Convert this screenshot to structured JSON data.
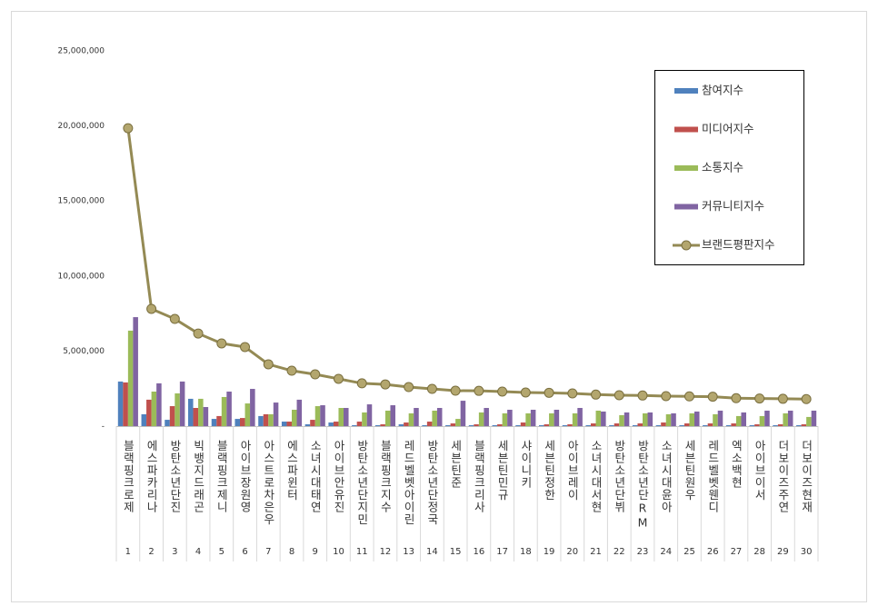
{
  "chart_data": {
    "type": "combo",
    "categories": [
      "블랙핑크로제",
      "에스파카리나",
      "방탄소년단진",
      "빅뱅지드래곤",
      "블랙핑크제니",
      "아이브장원영",
      "아스트로차은우",
      "에스파윈터",
      "소녀시대태연",
      "아이브안유진",
      "방탄소년단지민",
      "블랙핑크지수",
      "레드벨벳아이린",
      "방탄소년단정국",
      "세븐틴준",
      "블랙핑크리사",
      "세븐틴민규",
      "샤이니키",
      "세븐틴정한",
      "아이브레이",
      "소녀시대서현",
      "방탄소년단뷔",
      "방탄소년단RM",
      "소녀시대윤아",
      "세븐틴원우",
      "레드벨벳웬디",
      "엑소백현",
      "아이브이서",
      "더보이즈주연",
      "더보이즈현재"
    ],
    "ranks": [
      1,
      2,
      3,
      4,
      5,
      6,
      7,
      8,
      9,
      10,
      11,
      12,
      13,
      14,
      15,
      16,
      17,
      18,
      19,
      20,
      21,
      22,
      23,
      24,
      25,
      26,
      27,
      28,
      29,
      30
    ],
    "series": [
      {
        "name": "참여지수",
        "type": "bar",
        "color": "#4f81bd",
        "values": [
          2970000,
          790000,
          420000,
          1820000,
          480000,
          480000,
          670000,
          300000,
          120000,
          240000,
          60000,
          60000,
          120000,
          60000,
          60000,
          60000,
          60000,
          60000,
          60000,
          60000,
          60000,
          60000,
          60000,
          60000,
          60000,
          60000,
          60000,
          60000,
          60000,
          60000
        ]
      },
      {
        "name": "미디어지수",
        "type": "bar",
        "color": "#c0504d",
        "values": [
          2910000,
          1760000,
          1330000,
          1210000,
          670000,
          540000,
          790000,
          300000,
          420000,
          300000,
          300000,
          120000,
          240000,
          300000,
          180000,
          120000,
          120000,
          240000,
          120000,
          120000,
          180000,
          180000,
          180000,
          240000,
          180000,
          180000,
          180000,
          120000,
          120000,
          120000
        ]
      },
      {
        "name": "소통지수",
        "type": "bar",
        "color": "#9bbb59",
        "values": [
          6360000,
          2300000,
          2180000,
          1820000,
          1940000,
          1510000,
          790000,
          1090000,
          1330000,
          1210000,
          910000,
          1030000,
          850000,
          1030000,
          480000,
          910000,
          850000,
          850000,
          850000,
          850000,
          1030000,
          730000,
          850000,
          790000,
          850000,
          790000,
          670000,
          670000,
          850000,
          610000
        ]
      },
      {
        "name": "커뮤니티지수",
        "type": "bar",
        "color": "#8064a2",
        "values": [
          7260000,
          2850000,
          2970000,
          1270000,
          2300000,
          2480000,
          1570000,
          1760000,
          1390000,
          1210000,
          1450000,
          1390000,
          1210000,
          1210000,
          1690000,
          1210000,
          1090000,
          1090000,
          1090000,
          1210000,
          970000,
          910000,
          910000,
          850000,
          970000,
          1030000,
          910000,
          1030000,
          1030000,
          1030000
        ]
      },
      {
        "name": "브랜드평판지수",
        "type": "line",
        "color": "#948a54",
        "values": [
          19850000,
          7810000,
          7140000,
          6170000,
          5510000,
          5270000,
          4120000,
          3690000,
          3450000,
          3150000,
          2850000,
          2780000,
          2600000,
          2480000,
          2360000,
          2350000,
          2300000,
          2240000,
          2220000,
          2180000,
          2100000,
          2060000,
          2040000,
          2000000,
          1980000,
          1960000,
          1860000,
          1840000,
          1820000,
          1800000
        ]
      }
    ],
    "ylim": [
      0,
      25000000
    ],
    "yticks": [
      {
        "value": 0,
        "label": "-"
      },
      {
        "value": 5000000,
        "label": "5,000,000"
      },
      {
        "value": 10000000,
        "label": "10,000,000"
      },
      {
        "value": 15000000,
        "label": "15,000,000"
      },
      {
        "value": 20000000,
        "label": "20,000,000"
      },
      {
        "value": 25000000,
        "label": "25,000,000"
      }
    ],
    "grid": false,
    "legend": "top-right"
  }
}
